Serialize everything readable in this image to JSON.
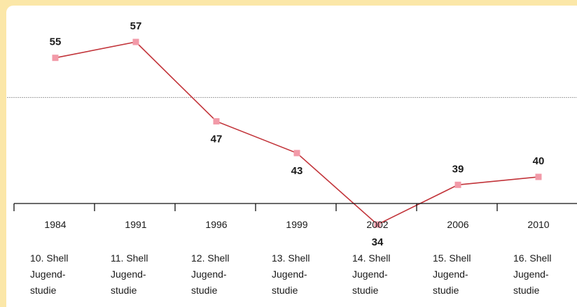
{
  "chart_data": {
    "type": "line",
    "categories": [
      "1984",
      "1991",
      "1996",
      "1999",
      "2002",
      "2006",
      "2010"
    ],
    "series": [
      {
        "values": [
          55,
          57,
          47,
          43,
          34,
          39,
          40
        ]
      }
    ],
    "category_labels": [
      [
        "10. Shell",
        "Jugend-",
        "studie"
      ],
      [
        "11. Shell",
        "Jugend-",
        "studie"
      ],
      [
        "12. Shell",
        "Jugend-",
        "studie"
      ],
      [
        "13. Shell",
        "Jugend-",
        "studie"
      ],
      [
        "14. Shell",
        "Jugend-",
        "studie"
      ],
      [
        "15. Shell",
        "Jugend-",
        "studie"
      ],
      [
        "16. Shell",
        "Jugend-",
        "studie"
      ]
    ],
    "reference_line": 50,
    "ylim": [
      30,
      60
    ],
    "grid": false,
    "legend": "none",
    "line_color": "#c2343a",
    "marker_color": "#f29aa8",
    "reference_line_color": "#aaaaaa"
  }
}
